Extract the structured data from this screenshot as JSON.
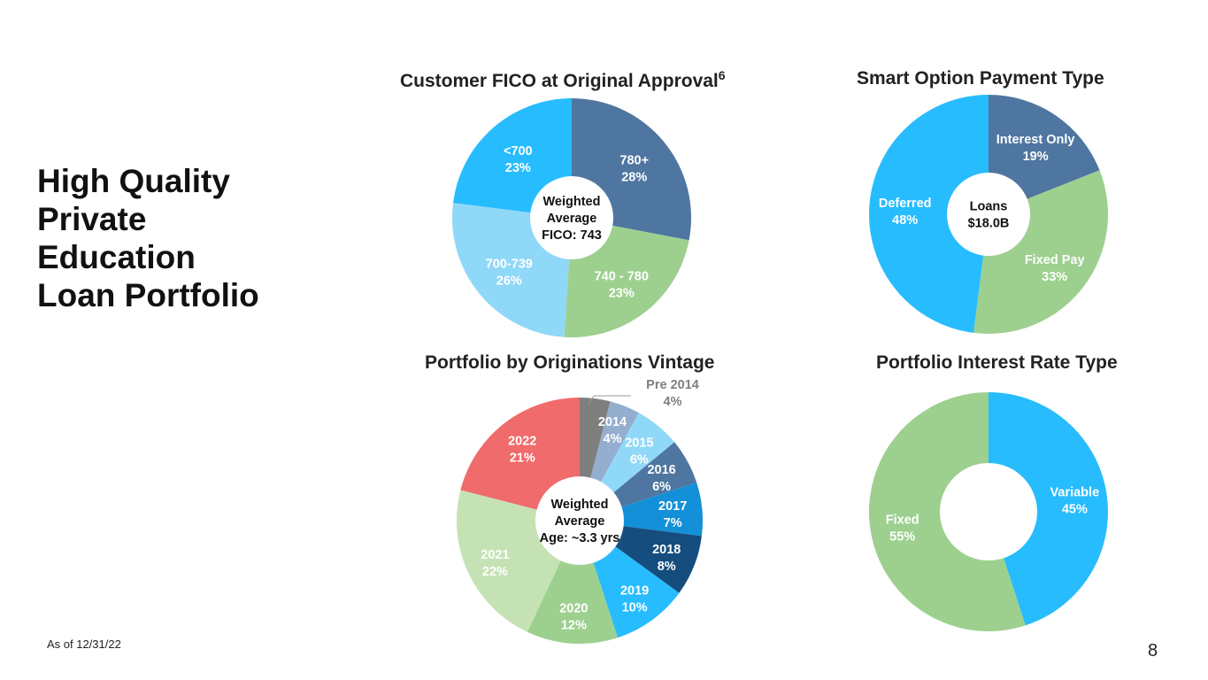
{
  "page": {
    "title_lines": [
      "High Quality",
      "Private",
      "Education",
      "Loan Portfolio"
    ],
    "footnote": "As of 12/31/22",
    "page_number": "8"
  },
  "chart_data": [
    {
      "id": "fico",
      "type": "pie",
      "title": "Customer FICO at Original Approval",
      "title_superscript": "6",
      "center_text": [
        "Weighted",
        "Average",
        "FICO: 743"
      ],
      "slices": [
        {
          "label": "780+",
          "value": 28,
          "pct": "28%",
          "color": "#4f76a0"
        },
        {
          "label": "740 - 780",
          "value": 23,
          "pct": "23%",
          "color": "#9dd08f"
        },
        {
          "label": "700-739",
          "value": 26,
          "pct": "26%",
          "color": "#90d8f8"
        },
        {
          "label": "<700",
          "value": 23,
          "pct": "23%",
          "color": "#27bcfd"
        }
      ]
    },
    {
      "id": "smart",
      "type": "pie",
      "title": "Smart Option Payment Type",
      "center_text": [
        "Loans",
        "$18.0B"
      ],
      "slices": [
        {
          "label": "Interest Only",
          "value": 19,
          "pct": "19%",
          "color": "#4f76a0"
        },
        {
          "label": "Fixed Pay",
          "value": 33,
          "pct": "33%",
          "color": "#9dd08f"
        },
        {
          "label": "Deferred",
          "value": 48,
          "pct": "48%",
          "color": "#27bcfd"
        }
      ]
    },
    {
      "id": "vintage",
      "type": "pie",
      "title": "Portfolio by Originations Vintage",
      "center_text": [
        "Weighted",
        "Average",
        "Age: ~3.3 yrs"
      ],
      "slices": [
        {
          "label": "Pre 2014",
          "value": 4,
          "pct": "4%",
          "color": "#7f7f7f",
          "outside": true
        },
        {
          "label": "2014",
          "value": 4,
          "pct": "4%",
          "color": "#94aed0"
        },
        {
          "label": "2015",
          "value": 6,
          "pct": "6%",
          "color": "#90d8f8"
        },
        {
          "label": "2016",
          "value": 6,
          "pct": "6%",
          "color": "#4f76a0"
        },
        {
          "label": "2017",
          "value": 7,
          "pct": "7%",
          "color": "#1390d8"
        },
        {
          "label": "2018",
          "value": 8,
          "pct": "8%",
          "color": "#154d7e"
        },
        {
          "label": "2019",
          "value": 10,
          "pct": "10%",
          "color": "#27bcfd"
        },
        {
          "label": "2020",
          "value": 12,
          "pct": "12%",
          "color": "#9dd08f"
        },
        {
          "label": "2021",
          "value": 22,
          "pct": "22%",
          "color": "#c5e2b4"
        },
        {
          "label": "2022",
          "value": 21,
          "pct": "21%",
          "color": "#f06b6b"
        }
      ]
    },
    {
      "id": "rate",
      "type": "pie",
      "title": "Portfolio Interest Rate Type",
      "center_text": [],
      "slices": [
        {
          "label": "Variable",
          "value": 45,
          "pct": "45%",
          "color": "#27bcfd"
        },
        {
          "label": "Fixed",
          "value": 55,
          "pct": "55%",
          "color": "#9dd08f"
        }
      ]
    }
  ]
}
